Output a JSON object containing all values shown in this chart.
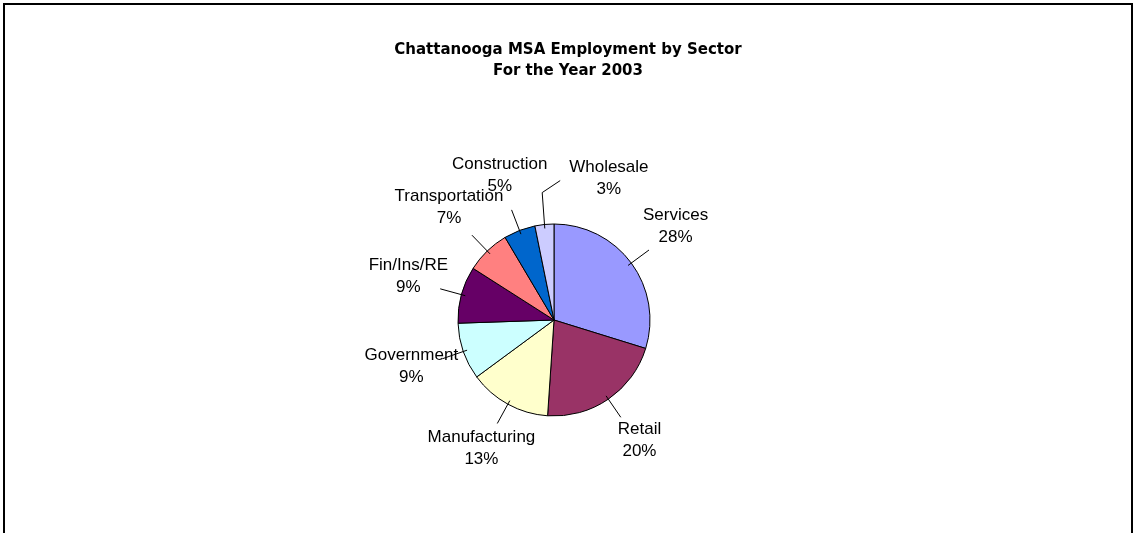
{
  "chart_data": {
    "type": "pie",
    "title": "Chattanooga MSA Employment by Sector",
    "subtitle": "For the Year 2003",
    "categories": [
      "Services",
      "Retail",
      "Manufacturing",
      "Government",
      "Fin/Ins/RE",
      "Transportation",
      "Construction",
      "Wholesale"
    ],
    "values": [
      28,
      20,
      13,
      9,
      9,
      7,
      5,
      3
    ],
    "value_labels": [
      "28%",
      "20%",
      "13%",
      "9%",
      "9%",
      "7%",
      "5%",
      "3%"
    ],
    "colors": [
      "#9999ff",
      "#993366",
      "#ffffcc",
      "#ccffff",
      "#660066",
      "#ff8080",
      "#0066cc",
      "#ccccff"
    ],
    "legend": false
  }
}
